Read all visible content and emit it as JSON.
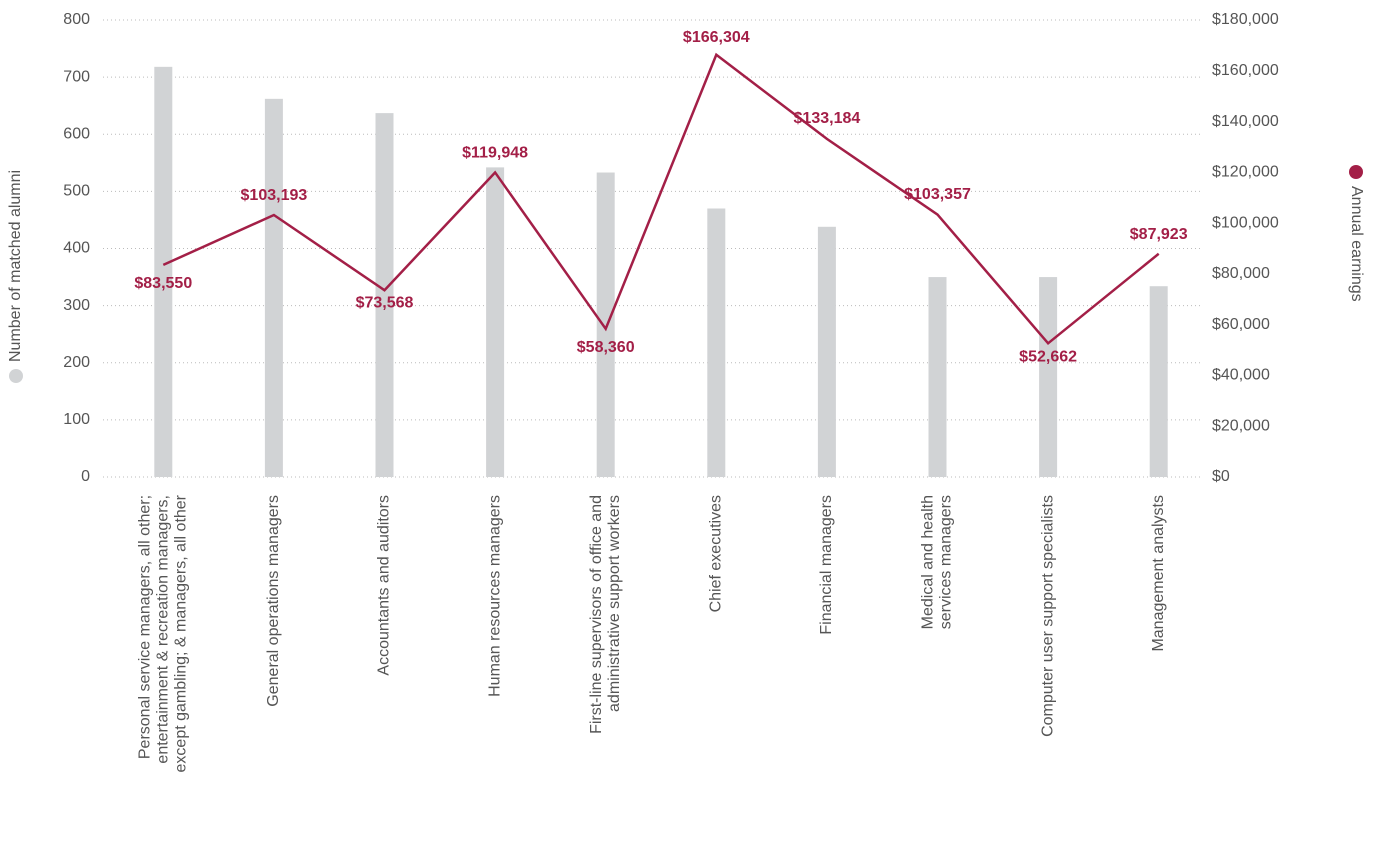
{
  "chart_data": {
    "type": "bar_line",
    "categories": [
      [
        "Personal service managers, all other;",
        "entertainment & recreation managers,",
        "except gambling; & managers, all other"
      ],
      [
        "General operations managers"
      ],
      [
        "Accountants and auditors"
      ],
      [
        "Human resources managers"
      ],
      [
        "First-line supervisors of office and",
        "administrative support workers"
      ],
      [
        "Chief executives"
      ],
      [
        "Financial managers"
      ],
      [
        "Medical and health",
        "services managers"
      ],
      [
        "Computer user support specialists"
      ],
      [
        "Management analysts"
      ]
    ],
    "series": [
      {
        "name": "Number of matched alumni",
        "type": "bar",
        "color": "#d1d3d5",
        "values": [
          718,
          662,
          637,
          542,
          533,
          470,
          438,
          350,
          350,
          334
        ]
      },
      {
        "name": "Annual earnings",
        "type": "line",
        "axis": "y2",
        "color": "#a31f47",
        "values": [
          83550,
          103193,
          73568,
          119948,
          58360,
          166304,
          133184,
          103357,
          52662,
          87923
        ],
        "value_labels": [
          "$83,550",
          "$103,193",
          "$73,568",
          "$119,948",
          "$58,360",
          "$166,304",
          "$133,184",
          "$103,357",
          "$52,662",
          "$87,923"
        ]
      }
    ],
    "ylim": [
      0,
      800
    ],
    "yticks": [
      0,
      100,
      200,
      300,
      400,
      500,
      600,
      700,
      800
    ],
    "y2lim": [
      0,
      180000
    ],
    "y2ticks": [
      {
        "value": 0,
        "label": "$0"
      },
      {
        "value": 20000,
        "label": "$20,000"
      },
      {
        "value": 40000,
        "label": "$40,000"
      },
      {
        "value": 60000,
        "label": "$60,000"
      },
      {
        "value": 80000,
        "label": "$80,000"
      },
      {
        "value": 100000,
        "label": "$100,000"
      },
      {
        "value": 120000,
        "label": "$120,000"
      },
      {
        "value": 140000,
        "label": "$140,000"
      },
      {
        "value": 160000,
        "label": "$160,000"
      },
      {
        "value": 180000,
        "label": "$180,000"
      }
    ],
    "grid": true
  }
}
